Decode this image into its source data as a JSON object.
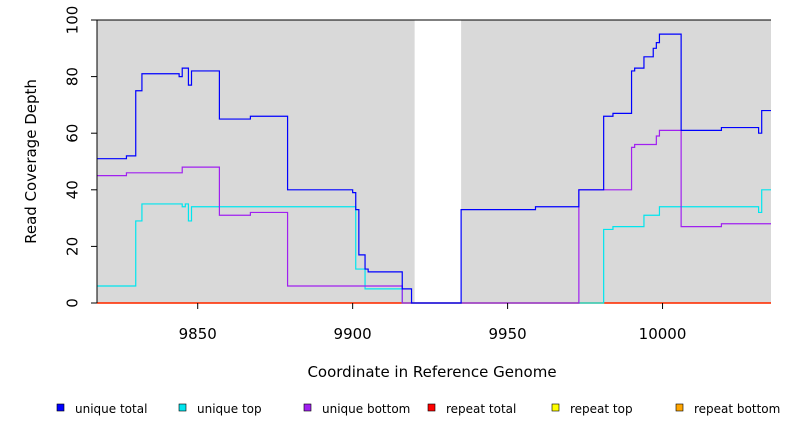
{
  "chart_data": {
    "type": "line",
    "title": "",
    "xlabel": "Coordinate in Reference Genome",
    "ylabel": "Read Coverage Depth",
    "xlim": [
      9817.5,
      10035
    ],
    "ylim": [
      0,
      100
    ],
    "x_ticks": [
      9850,
      9900,
      9950,
      10000
    ],
    "y_ticks": [
      0,
      20,
      40,
      60,
      80,
      100
    ],
    "grid": false,
    "background": "#d9d9d9",
    "gap_regions": [
      [
        9920,
        9935
      ]
    ],
    "legend_position": "bottom",
    "series": [
      {
        "name": "unique total",
        "color": "#0000ff",
        "step": [
          [
            9817.5,
            51
          ],
          [
            9827,
            51
          ],
          [
            9827,
            52
          ],
          [
            9830,
            52
          ],
          [
            9830,
            75
          ],
          [
            9832,
            75
          ],
          [
            9832,
            81
          ],
          [
            9844,
            81
          ],
          [
            9844,
            80
          ],
          [
            9845,
            80
          ],
          [
            9845,
            83
          ],
          [
            9847,
            83
          ],
          [
            9847,
            77
          ],
          [
            9848,
            77
          ],
          [
            9848,
            82
          ],
          [
            9857,
            82
          ],
          [
            9857,
            65
          ],
          [
            9867,
            65
          ],
          [
            9867,
            66
          ],
          [
            9879,
            66
          ],
          [
            9879,
            40
          ],
          [
            9900,
            40
          ],
          [
            9900,
            39
          ],
          [
            9901,
            39
          ],
          [
            9901,
            33
          ],
          [
            9902,
            33
          ],
          [
            9902,
            17
          ],
          [
            9904,
            17
          ],
          [
            9904,
            12
          ],
          [
            9905,
            12
          ],
          [
            9905,
            11
          ],
          [
            9916,
            11
          ],
          [
            9916,
            5
          ],
          [
            9919,
            5
          ],
          [
            9919,
            0
          ],
          [
            9935,
            0
          ],
          [
            9935,
            33
          ],
          [
            9959,
            33
          ],
          [
            9959,
            34
          ],
          [
            9973,
            34
          ],
          [
            9973,
            40
          ],
          [
            9981,
            40
          ],
          [
            9981,
            66
          ],
          [
            9984,
            66
          ],
          [
            9984,
            67
          ],
          [
            9990,
            67
          ],
          [
            9990,
            82
          ],
          [
            9991,
            82
          ],
          [
            9991,
            83
          ],
          [
            9994,
            83
          ],
          [
            9994,
            87
          ],
          [
            9997,
            87
          ],
          [
            9997,
            90
          ],
          [
            9998,
            90
          ],
          [
            9998,
            92
          ],
          [
            9999,
            92
          ],
          [
            9999,
            95
          ],
          [
            10006,
            95
          ],
          [
            10006,
            61
          ],
          [
            10019,
            61
          ],
          [
            10019,
            62
          ],
          [
            10031,
            62
          ],
          [
            10031,
            60
          ],
          [
            10032,
            60
          ],
          [
            10032,
            68
          ],
          [
            10035,
            68
          ]
        ]
      },
      {
        "name": "unique top",
        "color": "#00e5ee",
        "step": [
          [
            9817.5,
            6
          ],
          [
            9830,
            6
          ],
          [
            9830,
            29
          ],
          [
            9832,
            29
          ],
          [
            9832,
            35
          ],
          [
            9845,
            35
          ],
          [
            9845,
            34
          ],
          [
            9846,
            34
          ],
          [
            9846,
            35
          ],
          [
            9847,
            35
          ],
          [
            9847,
            29
          ],
          [
            9848,
            29
          ],
          [
            9848,
            34
          ],
          [
            9901,
            34
          ],
          [
            9901,
            12
          ],
          [
            9904,
            12
          ],
          [
            9904,
            5
          ],
          [
            9916,
            5
          ],
          [
            9916,
            0
          ],
          [
            9981,
            0
          ],
          [
            9981,
            26
          ],
          [
            9984,
            26
          ],
          [
            9984,
            27
          ],
          [
            9994,
            27
          ],
          [
            9994,
            31
          ],
          [
            9999,
            31
          ],
          [
            9999,
            34
          ],
          [
            10031,
            34
          ],
          [
            10031,
            32
          ],
          [
            10032,
            32
          ],
          [
            10032,
            40
          ],
          [
            10035,
            40
          ]
        ]
      },
      {
        "name": "unique bottom",
        "color": "#a020f0",
        "step": [
          [
            9817.5,
            45
          ],
          [
            9827,
            45
          ],
          [
            9827,
            46
          ],
          [
            9845,
            46
          ],
          [
            9845,
            48
          ],
          [
            9857,
            48
          ],
          [
            9857,
            31
          ],
          [
            9867,
            31
          ],
          [
            9867,
            32
          ],
          [
            9879,
            32
          ],
          [
            9879,
            6
          ],
          [
            9916,
            6
          ],
          [
            9916,
            0
          ],
          [
            9973,
            0
          ],
          [
            9973,
            40
          ],
          [
            9990,
            40
          ],
          [
            9990,
            55
          ],
          [
            9991,
            55
          ],
          [
            9991,
            56
          ],
          [
            9998,
            56
          ],
          [
            9998,
            59
          ],
          [
            9999,
            59
          ],
          [
            9999,
            61
          ],
          [
            10006,
            61
          ],
          [
            10006,
            27
          ],
          [
            10019,
            27
          ],
          [
            10019,
            28
          ],
          [
            10035,
            28
          ]
        ]
      },
      {
        "name": "repeat total",
        "color": "#ff0000",
        "step": [
          [
            9817.5,
            0
          ],
          [
            10035,
            0
          ]
        ]
      },
      {
        "name": "repeat top",
        "color": "#ffff00",
        "step": [
          [
            9817.5,
            0
          ],
          [
            10035,
            0
          ]
        ]
      },
      {
        "name": "repeat bottom",
        "color": "#ffa500",
        "step": [
          [
            9817.5,
            0
          ],
          [
            10035,
            0
          ]
        ]
      }
    ]
  }
}
